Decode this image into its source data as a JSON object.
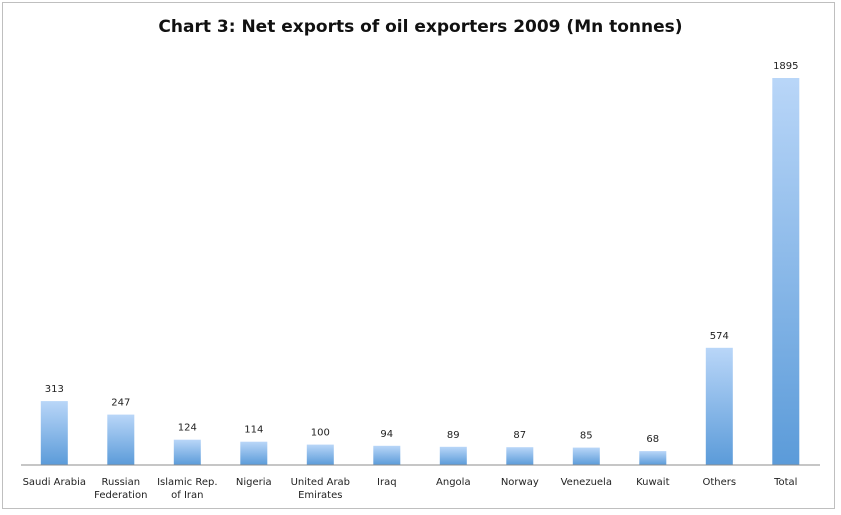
{
  "chart_data": {
    "type": "bar",
    "title": "Chart 3: Net exports of oil exporters 2009 (Mn tonnes)",
    "categories": [
      "Saudi Arabia",
      "Russian Federation",
      "Islamic Rep. of Iran",
      "Nigeria",
      "United Arab Emirates",
      "Iraq",
      "Angola",
      "Norway",
      "Venezuela",
      "Kuwait",
      "Others",
      "Total"
    ],
    "category_lines": [
      [
        "Saudi Arabia"
      ],
      [
        "Russian",
        "Federation"
      ],
      [
        "Islamic Rep.",
        "of Iran"
      ],
      [
        "Nigeria"
      ],
      [
        "United Arab",
        "Emirates"
      ],
      [
        "Iraq"
      ],
      [
        "Angola"
      ],
      [
        "Norway"
      ],
      [
        "Venezuela"
      ],
      [
        "Kuwait"
      ],
      [
        "Others"
      ],
      [
        "Total"
      ]
    ],
    "values": [
      313,
      247,
      124,
      114,
      100,
      94,
      89,
      87,
      85,
      68,
      574,
      1895
    ],
    "value_labels": [
      "313",
      "247",
      "124",
      "114",
      "100",
      "94",
      "89",
      "87",
      "85",
      "68",
      "574",
      "1895"
    ],
    "xlabel": "",
    "ylabel": "",
    "ylim": [
      0,
      1895
    ],
    "grid": false,
    "legend": "none",
    "colors": {
      "bar_top": "#b9d6f8",
      "bar_bottom": "#5b9bd9",
      "axis": "#8c8c8c"
    }
  }
}
